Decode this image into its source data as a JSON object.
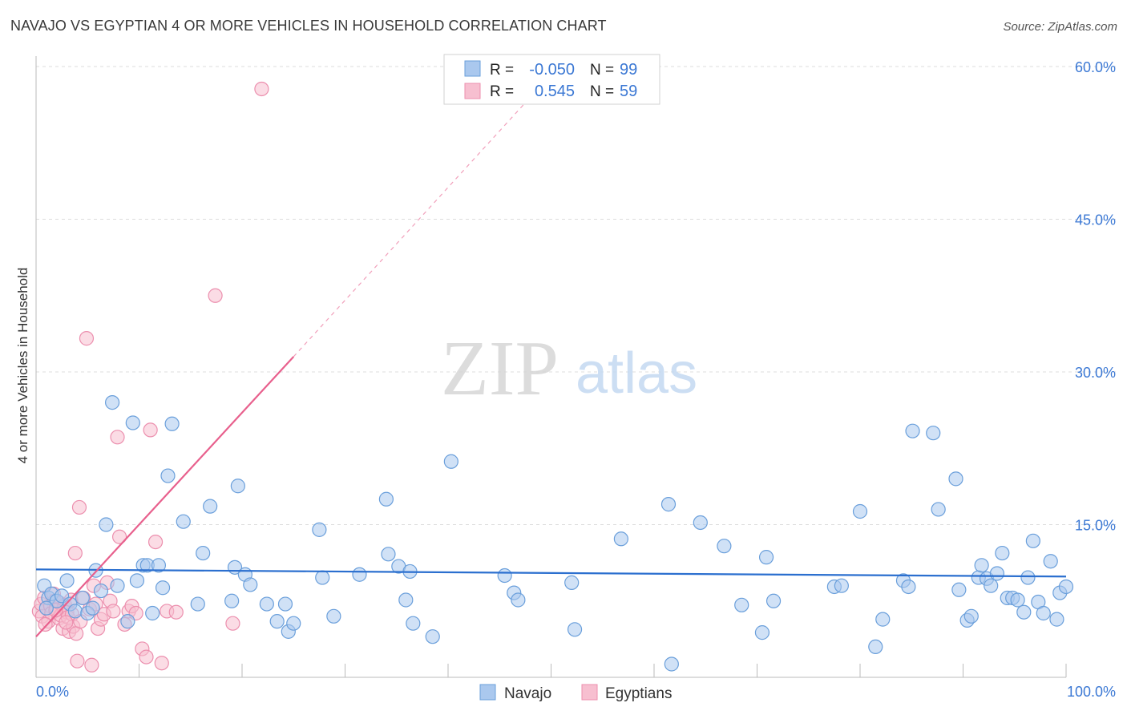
{
  "header": {
    "title": "NAVAJO VS EGYPTIAN 4 OR MORE VEHICLES IN HOUSEHOLD CORRELATION CHART",
    "source": "Source: ZipAtlas.com"
  },
  "legend_box": {
    "rows": [
      {
        "r_label": "R =",
        "r_value": "-0.050",
        "n_label": "N =",
        "n_value": "99"
      },
      {
        "r_label": "R =",
        "r_value": "0.545",
        "n_label": "N =",
        "n_value": "59"
      }
    ]
  },
  "bottom_legend": {
    "items": [
      "Navajo",
      "Egyptians"
    ]
  },
  "watermark": {
    "zip": "ZIP",
    "atlas": "atlas"
  },
  "colors": {
    "navajo_fill": "#aac8ee",
    "navajo_stroke": "#6a9fdb",
    "navajo_line": "#2b6fcf",
    "egypt_fill": "#f7bfd0",
    "egypt_stroke": "#ec8fae",
    "egypt_line": "#e8608d",
    "tick_text": "#3b78d4",
    "grid": "#dcdcdc"
  },
  "chart_data": {
    "type": "scatter",
    "title": "NAVAJO VS EGYPTIAN 4 OR MORE VEHICLES IN HOUSEHOLD CORRELATION CHART",
    "xlabel": "",
    "ylabel": "4 or more Vehicles in Household",
    "xlim": [
      0,
      100
    ],
    "ylim": [
      0,
      63
    ],
    "x_tick_labels": [
      "0.0%",
      "100.0%"
    ],
    "y_ticks": [
      15,
      30,
      45,
      60
    ],
    "y_tick_labels": [
      "15.0%",
      "30.0%",
      "45.0%",
      "60.0%"
    ],
    "series": [
      {
        "name": "Navajo",
        "R": -0.05,
        "N": 99,
        "trend": {
          "x": [
            0,
            100
          ],
          "y": [
            10.6,
            9.9
          ],
          "style": "solid"
        },
        "points": [
          [
            0.8,
            9.0
          ],
          [
            1.2,
            7.8
          ],
          [
            1.5,
            8.2
          ],
          [
            2.0,
            7.5
          ],
          [
            2.5,
            8.0
          ],
          [
            3.0,
            9.5
          ],
          [
            3.3,
            7.2
          ],
          [
            3.8,
            6.5
          ],
          [
            4.5,
            7.8
          ],
          [
            5.0,
            6.3
          ],
          [
            5.5,
            6.8
          ],
          [
            5.8,
            10.5
          ],
          [
            6.3,
            8.5
          ],
          [
            6.8,
            15.0
          ],
          [
            7.4,
            27.0
          ],
          [
            7.9,
            9.0
          ],
          [
            8.9,
            5.5
          ],
          [
            9.4,
            25.0
          ],
          [
            9.8,
            9.5
          ],
          [
            10.4,
            11.0
          ],
          [
            10.8,
            11.0
          ],
          [
            11.3,
            6.3
          ],
          [
            11.9,
            11.0
          ],
          [
            12.3,
            8.8
          ],
          [
            12.8,
            19.8
          ],
          [
            13.2,
            24.9
          ],
          [
            14.3,
            15.3
          ],
          [
            15.7,
            7.2
          ],
          [
            16.2,
            12.2
          ],
          [
            16.9,
            16.8
          ],
          [
            19.0,
            7.5
          ],
          [
            19.3,
            10.8
          ],
          [
            19.6,
            18.8
          ],
          [
            20.3,
            10.1
          ],
          [
            20.8,
            9.1
          ],
          [
            22.4,
            7.2
          ],
          [
            23.4,
            5.5
          ],
          [
            24.2,
            7.2
          ],
          [
            24.5,
            4.5
          ],
          [
            25.0,
            5.3
          ],
          [
            27.5,
            14.5
          ],
          [
            27.8,
            9.8
          ],
          [
            28.9,
            6.0
          ],
          [
            31.4,
            10.1
          ],
          [
            34.0,
            17.5
          ],
          [
            34.2,
            12.1
          ],
          [
            35.2,
            10.9
          ],
          [
            35.9,
            7.6
          ],
          [
            36.3,
            10.4
          ],
          [
            36.6,
            5.3
          ],
          [
            38.5,
            4.0
          ],
          [
            40.3,
            21.2
          ],
          [
            45.5,
            10.0
          ],
          [
            46.4,
            8.3
          ],
          [
            46.8,
            7.6
          ],
          [
            52.0,
            9.3
          ],
          [
            52.3,
            4.7
          ],
          [
            56.8,
            13.6
          ],
          [
            61.4,
            17.0
          ],
          [
            61.7,
            1.3
          ],
          [
            64.5,
            15.2
          ],
          [
            66.8,
            12.9
          ],
          [
            68.5,
            7.1
          ],
          [
            70.5,
            4.4
          ],
          [
            70.9,
            11.8
          ],
          [
            71.6,
            7.5
          ],
          [
            77.5,
            8.9
          ],
          [
            78.2,
            9.0
          ],
          [
            80.0,
            16.3
          ],
          [
            81.5,
            3.0
          ],
          [
            82.2,
            5.7
          ],
          [
            84.2,
            9.5
          ],
          [
            84.7,
            8.9
          ],
          [
            85.1,
            24.2
          ],
          [
            87.1,
            24.0
          ],
          [
            87.6,
            16.5
          ],
          [
            89.3,
            19.5
          ],
          [
            89.6,
            8.6
          ],
          [
            90.4,
            5.6
          ],
          [
            90.8,
            6.0
          ],
          [
            91.5,
            9.8
          ],
          [
            91.8,
            11.0
          ],
          [
            92.3,
            9.7
          ],
          [
            92.7,
            9.0
          ],
          [
            93.3,
            10.2
          ],
          [
            93.8,
            12.2
          ],
          [
            94.3,
            7.8
          ],
          [
            94.8,
            7.8
          ],
          [
            95.3,
            7.6
          ],
          [
            95.9,
            6.4
          ],
          [
            96.3,
            9.8
          ],
          [
            96.8,
            13.4
          ],
          [
            97.3,
            7.4
          ],
          [
            97.8,
            6.3
          ],
          [
            98.5,
            11.4
          ],
          [
            99.1,
            5.7
          ],
          [
            99.4,
            8.3
          ],
          [
            100.0,
            8.9
          ],
          [
            1.0,
            6.8
          ]
        ]
      },
      {
        "name": "Egyptians",
        "R": 0.545,
        "N": 59,
        "trend": {
          "solid_x": [
            0,
            25
          ],
          "solid_y": [
            4.0,
            31.5
          ],
          "dashed_x": [
            25,
            48
          ],
          "dashed_y": [
            31.5,
            57.0
          ]
        },
        "points": [
          [
            0.3,
            6.5
          ],
          [
            0.5,
            7.2
          ],
          [
            0.6,
            6.0
          ],
          [
            0.8,
            7.8
          ],
          [
            1.0,
            6.8
          ],
          [
            1.2,
            5.5
          ],
          [
            1.4,
            7.0
          ],
          [
            1.5,
            6.3
          ],
          [
            1.7,
            8.2
          ],
          [
            1.8,
            7.5
          ],
          [
            2.0,
            6.7
          ],
          [
            2.2,
            5.8
          ],
          [
            2.3,
            7.3
          ],
          [
            2.4,
            6.1
          ],
          [
            2.6,
            4.8
          ],
          [
            2.7,
            6.9
          ],
          [
            2.8,
            7.1
          ],
          [
            3.0,
            6.4
          ],
          [
            3.1,
            5.9
          ],
          [
            3.2,
            4.5
          ],
          [
            3.4,
            7.6
          ],
          [
            3.5,
            6.2
          ],
          [
            3.6,
            5.0
          ],
          [
            3.8,
            12.2
          ],
          [
            3.9,
            4.3
          ],
          [
            4.0,
            1.6
          ],
          [
            4.2,
            16.7
          ],
          [
            4.3,
            5.5
          ],
          [
            4.6,
            7.8
          ],
          [
            4.9,
            33.3
          ],
          [
            5.2,
            6.7
          ],
          [
            5.4,
            1.2
          ],
          [
            5.6,
            9.0
          ],
          [
            5.8,
            7.2
          ],
          [
            6.0,
            4.8
          ],
          [
            6.3,
            5.7
          ],
          [
            6.6,
            6.2
          ],
          [
            6.9,
            9.3
          ],
          [
            7.2,
            7.5
          ],
          [
            7.5,
            6.5
          ],
          [
            7.9,
            23.6
          ],
          [
            8.1,
            13.8
          ],
          [
            8.6,
            5.2
          ],
          [
            9.0,
            6.5
          ],
          [
            9.3,
            7.0
          ],
          [
            9.7,
            6.3
          ],
          [
            10.3,
            2.8
          ],
          [
            10.7,
            2.0
          ],
          [
            11.1,
            24.3
          ],
          [
            11.6,
            13.3
          ],
          [
            12.2,
            1.4
          ],
          [
            12.7,
            6.5
          ],
          [
            13.6,
            6.4
          ],
          [
            17.4,
            37.5
          ],
          [
            19.1,
            5.3
          ],
          [
            21.9,
            57.8
          ],
          [
            2.9,
            5.4
          ],
          [
            1.9,
            6.6
          ],
          [
            0.9,
            5.2
          ]
        ]
      }
    ]
  }
}
